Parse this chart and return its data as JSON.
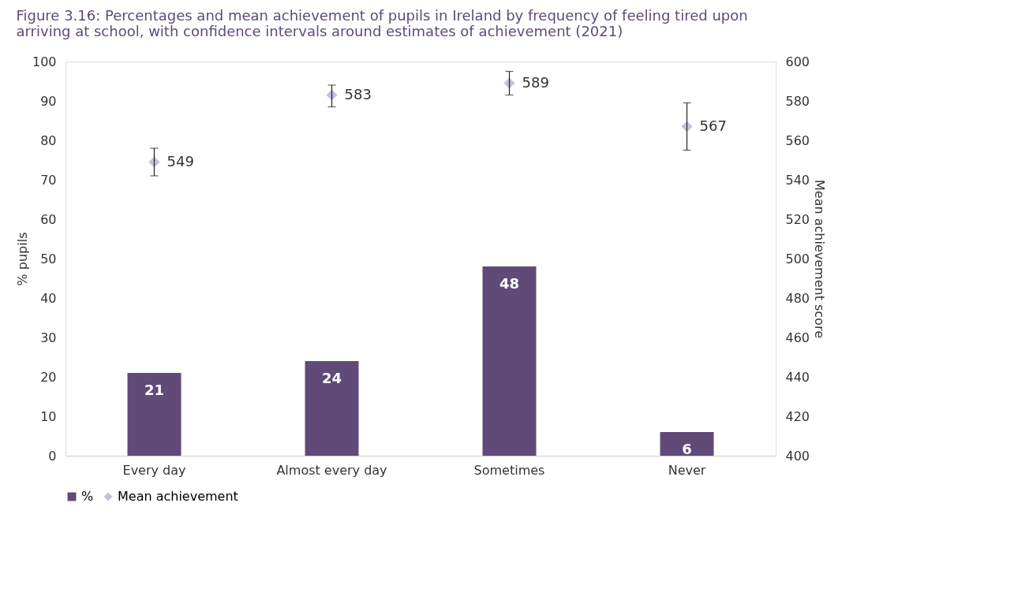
{
  "chart_data": {
    "type": "bar",
    "title": "Figure 3.16: Percentages and mean achievement of pupils in Ireland by frequency of feeling tired upon arriving at school, with confidence intervals around estimates of achievement (2021)",
    "categories": [
      "Every day",
      "Almost every day",
      "Sometimes",
      "Never"
    ],
    "series": [
      {
        "name": "%",
        "type": "bar",
        "color": "#5f4a78",
        "values": [
          21,
          24,
          48,
          6
        ]
      },
      {
        "name": "Mean achievement",
        "type": "scatter",
        "axis": "y2",
        "marker": "diamond",
        "color": "#c9bfdc",
        "values": [
          549,
          583,
          589,
          567
        ],
        "errors": [
          [
            542,
            556
          ],
          [
            577,
            588
          ],
          [
            583,
            595
          ],
          [
            555,
            579
          ]
        ]
      }
    ],
    "ylabel": "% pupils",
    "y2label": "Mean achievement score",
    "ylim": [
      0,
      100
    ],
    "yticks": [
      0,
      10,
      20,
      30,
      40,
      50,
      60,
      70,
      80,
      90,
      100
    ],
    "y2lim": [
      400,
      600
    ],
    "y2ticks": [
      400,
      420,
      440,
      460,
      480,
      500,
      520,
      540,
      560,
      580,
      600
    ],
    "data_labels": true,
    "grid": false,
    "legend": "bottom"
  }
}
